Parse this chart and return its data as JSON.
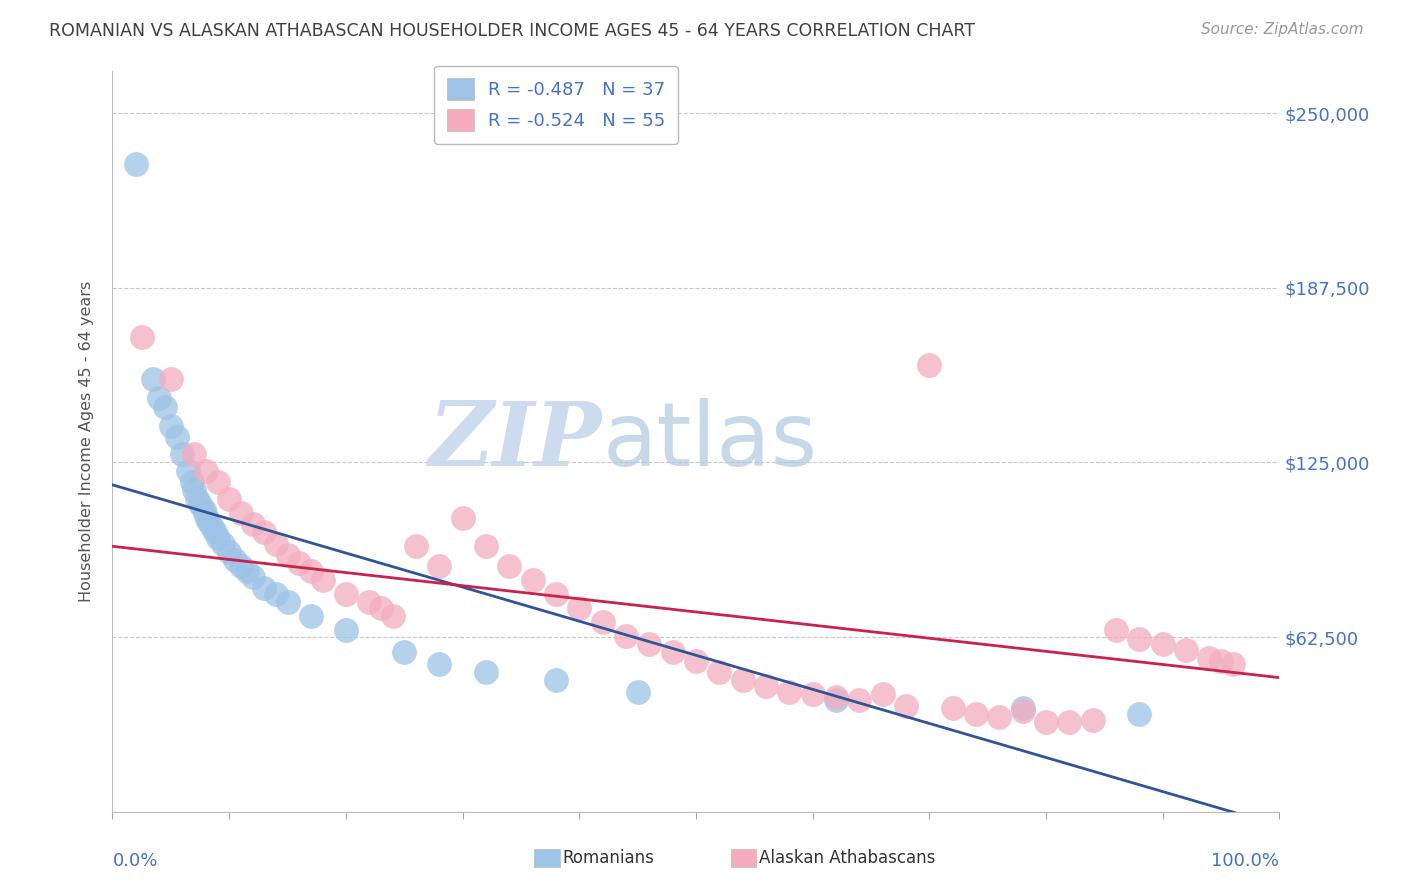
{
  "title": "ROMANIAN VS ALASKAN ATHABASCAN HOUSEHOLDER INCOME AGES 45 - 64 YEARS CORRELATION CHART",
  "source": "Source: ZipAtlas.com",
  "ylabel": "Householder Income Ages 45 - 64 years",
  "ytick_values": [
    0,
    62500,
    125000,
    187500,
    250000
  ],
  "ytick_labels": [
    "",
    "$62,500",
    "$125,000",
    "$187,500",
    "$250,000"
  ],
  "ylim": [
    0,
    265000
  ],
  "xlim": [
    0,
    100
  ],
  "legend_r1": "R = -0.487",
  "legend_n1": "N = 37",
  "legend_r2": "R = -0.524",
  "legend_n2": "N = 55",
  "color_romanian": "#9DC3E6",
  "color_athabascan": "#F4ACBE",
  "color_line_romanian": "#2F5597",
  "color_line_athabascan": "#C9224E",
  "background_color": "#FFFFFF",
  "grid_color": "#C8C8C8",
  "watermark_zip": "ZIP",
  "watermark_atlas": "atlas",
  "title_color": "#404040",
  "source_color": "#999999",
  "right_label_color": "#4472C4",
  "rom_line_x0": 0,
  "rom_line_y0": 117000,
  "rom_line_x1": 100,
  "rom_line_y1": -5000,
  "ath_line_x0": 0,
  "ath_line_y0": 95000,
  "ath_line_x1": 100,
  "ath_line_y1": 48000,
  "romanians_x": [
    2.0,
    3.5,
    4.0,
    4.5,
    5.0,
    5.5,
    6.0,
    6.5,
    6.8,
    7.0,
    7.2,
    7.5,
    7.8,
    8.0,
    8.2,
    8.5,
    8.8,
    9.0,
    9.5,
    10.0,
    10.5,
    11.0,
    11.5,
    12.0,
    13.0,
    14.0,
    15.0,
    17.0,
    20.0,
    25.0,
    28.0,
    32.0,
    38.0,
    45.0,
    62.0,
    78.0,
    88.0
  ],
  "romanians_y": [
    232000,
    155000,
    148000,
    145000,
    138000,
    134000,
    128000,
    122000,
    118000,
    115000,
    112000,
    110000,
    108000,
    106000,
    104000,
    102000,
    100000,
    98000,
    96000,
    93000,
    90000,
    88000,
    86000,
    84000,
    80000,
    78000,
    75000,
    70000,
    65000,
    57000,
    53000,
    50000,
    47000,
    43000,
    40000,
    37000,
    35000
  ],
  "athabascans_x": [
    2.5,
    5.0,
    7.0,
    8.0,
    9.0,
    10.0,
    11.0,
    12.0,
    13.0,
    14.0,
    15.0,
    16.0,
    17.0,
    18.0,
    20.0,
    22.0,
    23.0,
    24.0,
    26.0,
    28.0,
    30.0,
    32.0,
    34.0,
    36.0,
    38.0,
    40.0,
    42.0,
    44.0,
    46.0,
    48.0,
    50.0,
    52.0,
    54.0,
    56.0,
    58.0,
    60.0,
    62.0,
    64.0,
    66.0,
    68.0,
    72.0,
    74.0,
    76.0,
    80.0,
    82.0,
    84.0,
    86.0,
    88.0,
    90.0,
    92.0,
    94.0,
    95.0,
    96.0,
    78.0,
    70.0
  ],
  "athabascans_y": [
    170000,
    155000,
    128000,
    122000,
    118000,
    112000,
    107000,
    103000,
    100000,
    96000,
    92000,
    89000,
    86000,
    83000,
    78000,
    75000,
    73000,
    70000,
    95000,
    88000,
    105000,
    95000,
    88000,
    83000,
    78000,
    73000,
    68000,
    63000,
    60000,
    57000,
    54000,
    50000,
    47000,
    45000,
    43000,
    42000,
    41000,
    40000,
    42000,
    38000,
    37000,
    35000,
    34000,
    32000,
    32000,
    33000,
    65000,
    62000,
    60000,
    58000,
    55000,
    54000,
    53000,
    36000,
    160000
  ]
}
